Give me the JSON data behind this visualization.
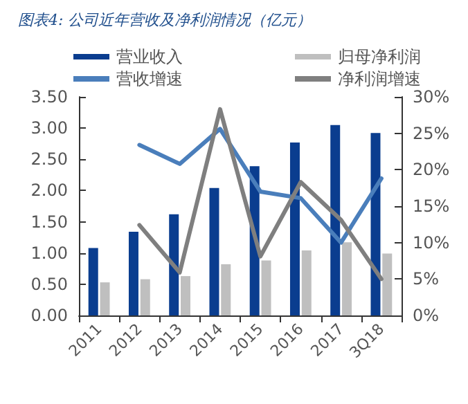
{
  "chart_data": {
    "type": "bar",
    "title": "图表4: 公司近年营收及净利润情况（亿元）",
    "categories": [
      "2011",
      "2012",
      "2013",
      "2014",
      "2015",
      "2016",
      "2017",
      "3Q18"
    ],
    "series": [
      {
        "name": "营业收入",
        "color": "#0a3d8f",
        "values": [
          1.08,
          1.34,
          1.62,
          2.04,
          2.39,
          2.77,
          3.05,
          2.92
        ]
      },
      {
        "name": "归母净利润",
        "color": "#bfbfbf",
        "values": [
          0.53,
          0.58,
          0.63,
          0.82,
          0.88,
          1.04,
          1.17,
          0.99
        ]
      },
      {
        "name": "营收增速",
        "type": "line",
        "axis": "y2",
        "color": "#4a7ebb",
        "values": [
          null,
          23.4,
          20.8,
          25.6,
          17.0,
          16.1,
          10.0,
          18.8
        ]
      },
      {
        "name": "净利润增速",
        "type": "line",
        "axis": "y2",
        "color": "#7f7f7f",
        "values": [
          null,
          12.4,
          5.9,
          28.3,
          8.1,
          18.3,
          13.1,
          5.0
        ]
      }
    ],
    "ylim": [
      0,
      3.5
    ],
    "yticks": [
      {
        "value": 0,
        "label": "0.00"
      },
      {
        "value": 0.5,
        "label": "0.50"
      },
      {
        "value": 1,
        "label": "1.00"
      },
      {
        "value": 1.5,
        "label": "1.50"
      },
      {
        "value": 2,
        "label": "2.00"
      },
      {
        "value": 2.5,
        "label": "2.50"
      },
      {
        "value": 3,
        "label": "3.00"
      },
      {
        "value": 3.5,
        "label": "3.50"
      }
    ],
    "y2lim": [
      0,
      30
    ],
    "y2ticks": [
      {
        "value": 0,
        "label": "0%"
      },
      {
        "value": 5,
        "label": "5%"
      },
      {
        "value": 10,
        "label": "10%"
      },
      {
        "value": 15,
        "label": "15%"
      },
      {
        "value": 20,
        "label": "20%"
      },
      {
        "value": 25,
        "label": "25%"
      },
      {
        "value": 30,
        "label": "30%"
      }
    ],
    "legend": "top",
    "grid": false,
    "marker": "none",
    "line_style": "solid"
  }
}
